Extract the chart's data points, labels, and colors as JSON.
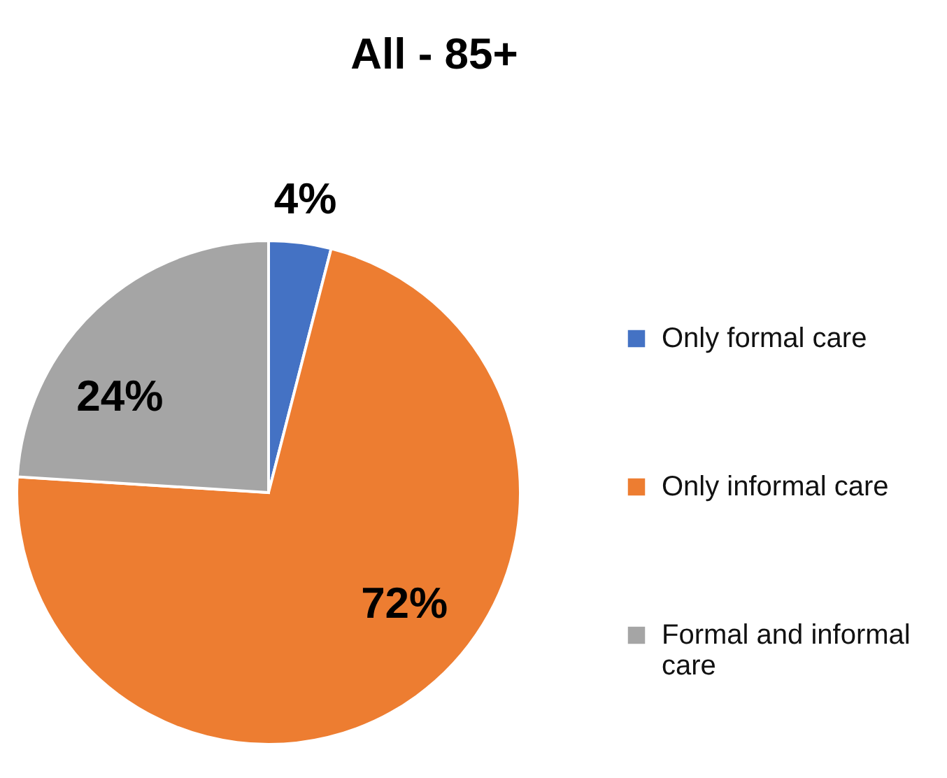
{
  "chart_data": {
    "type": "pie",
    "title": "All - 85+",
    "categories": [
      "Only formal care",
      "Only informal care",
      "Formal and informal care"
    ],
    "values": [
      4,
      72,
      24
    ],
    "colors": [
      "#4472c4",
      "#ed7d31",
      "#a5a5a5"
    ],
    "value_labels": [
      "4%",
      "72%",
      "24%"
    ],
    "legend": "right"
  }
}
